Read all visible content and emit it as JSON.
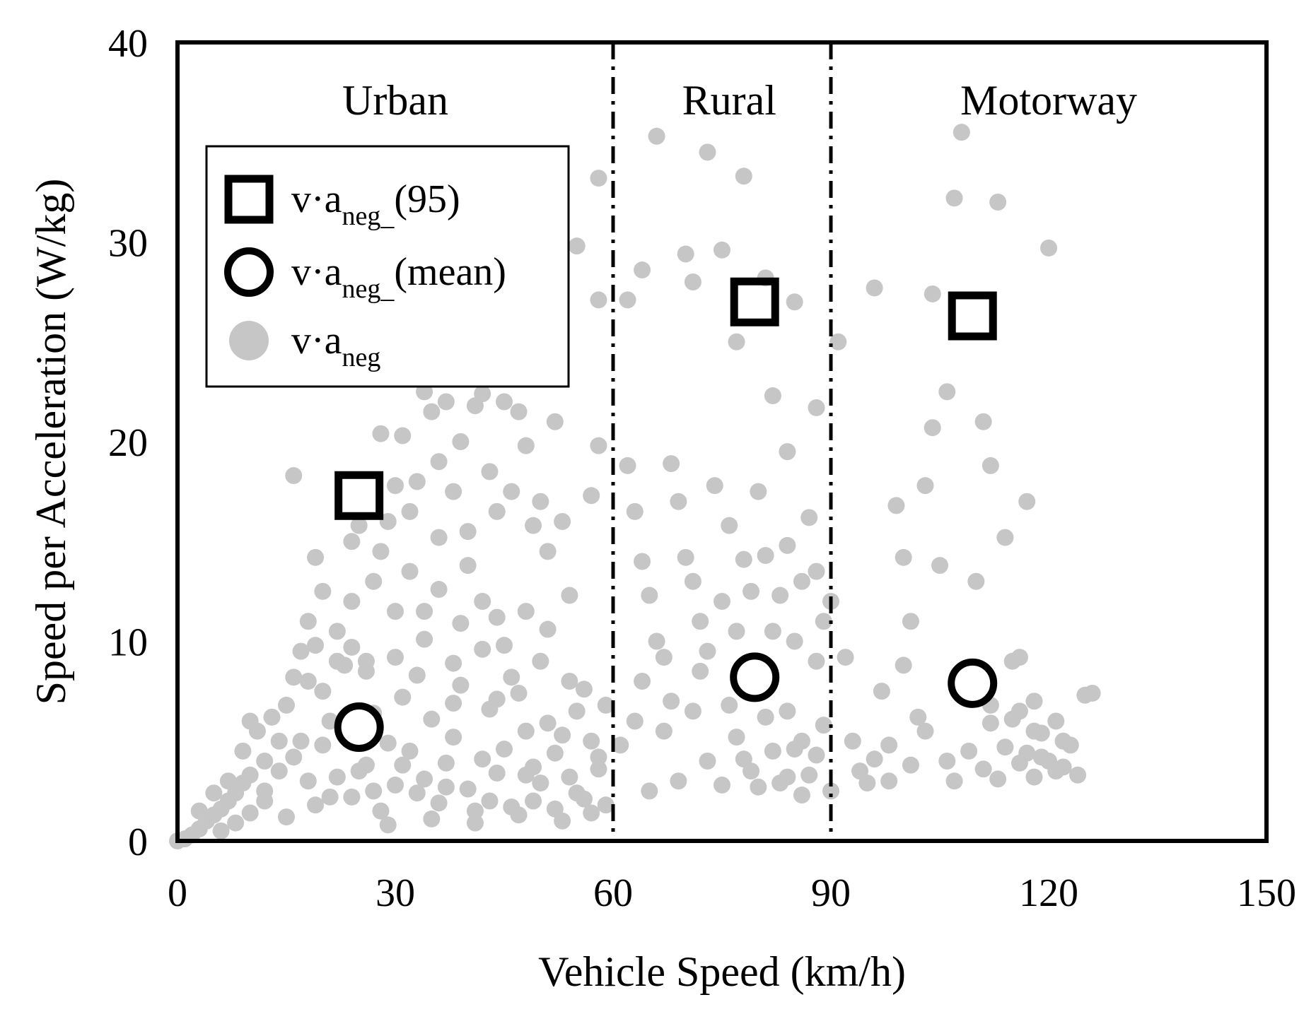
{
  "chart_data": {
    "type": "scatter",
    "title": "",
    "xlabel": "Vehicle Speed (km/h)",
    "ylabel": "Speed per Acceleration (W/kg)",
    "xlim": [
      0,
      150
    ],
    "ylim": [
      0,
      40
    ],
    "xticks": [
      "0",
      "30",
      "60",
      "90",
      "120",
      "150"
    ],
    "yticks": [
      "0",
      "10",
      "20",
      "30",
      "40"
    ],
    "grid": false,
    "legend_position": "top-left",
    "region_boundaries": [
      60,
      90
    ],
    "regions": [
      {
        "label": "Urban",
        "x_center": 30
      },
      {
        "label": "Rural",
        "x_center": 76
      },
      {
        "label": "Motorway",
        "x_center": 120
      }
    ],
    "legend": [
      {
        "symbol": "square",
        "base": "v·a",
        "sub": "neg_",
        "suffix": "(95)"
      },
      {
        "symbol": "circle",
        "base": "v·a",
        "sub": "neg_",
        "suffix": "(mean)"
      },
      {
        "symbol": "dot",
        "base": "v·a",
        "sub": "neg",
        "suffix": ""
      }
    ],
    "series": [
      {
        "name": "v·a_neg_(95)",
        "marker": "square",
        "points": [
          [
            25,
            17.3
          ],
          [
            79.5,
            27.0
          ],
          [
            109.5,
            26.3
          ]
        ]
      },
      {
        "name": "v·a_neg_(mean)",
        "marker": "circle",
        "points": [
          [
            25,
            5.7
          ],
          [
            79.5,
            8.2
          ],
          [
            109.5,
            7.9
          ]
        ]
      },
      {
        "name": "v·a_neg",
        "marker": "dot",
        "color": "#c6c6c6",
        "points": [
          [
            0,
            0
          ],
          [
            1,
            0.1
          ],
          [
            2,
            0.3
          ],
          [
            3,
            0.6
          ],
          [
            4,
            1.0
          ],
          [
            5,
            1.3
          ],
          [
            6,
            1.6
          ],
          [
            7,
            2.0
          ],
          [
            8,
            2.4
          ],
          [
            9,
            2.9
          ],
          [
            10,
            3.3
          ],
          [
            6,
            0.5
          ],
          [
            8,
            0.9
          ],
          [
            10,
            1.4
          ],
          [
            12,
            2.0
          ],
          [
            3,
            1.5
          ],
          [
            5,
            2.4
          ],
          [
            7,
            3.0
          ],
          [
            9,
            4.5
          ],
          [
            10,
            6.0
          ],
          [
            11,
            5.5
          ],
          [
            12,
            4.0
          ],
          [
            13,
            6.2
          ],
          [
            14,
            5.0
          ],
          [
            15,
            6.8
          ],
          [
            16,
            8.2
          ],
          [
            17,
            9.5
          ],
          [
            18,
            11.0
          ],
          [
            19,
            9.8
          ],
          [
            20,
            12.5
          ],
          [
            20,
            7.5
          ],
          [
            21,
            6.0
          ],
          [
            22,
            10.5
          ],
          [
            23,
            8.8
          ],
          [
            24,
            12.0
          ],
          [
            24,
            15.0
          ],
          [
            25,
            15.8
          ],
          [
            26,
            9.0
          ],
          [
            27,
            13.0
          ],
          [
            28,
            14.5
          ],
          [
            29,
            16.0
          ],
          [
            30,
            17.8
          ],
          [
            31,
            20.3
          ],
          [
            32,
            16.5
          ],
          [
            33,
            18.0
          ],
          [
            34,
            22.5
          ],
          [
            35,
            21.5
          ],
          [
            36,
            19.0
          ],
          [
            37,
            22.0
          ],
          [
            38,
            17.5
          ],
          [
            39,
            20.0
          ],
          [
            40,
            15.5
          ],
          [
            41,
            21.8
          ],
          [
            42,
            22.4
          ],
          [
            43,
            18.5
          ],
          [
            44,
            16.5
          ],
          [
            45,
            22.0
          ],
          [
            46,
            17.5
          ],
          [
            47,
            21.5
          ],
          [
            48,
            19.8
          ],
          [
            49,
            15.8
          ],
          [
            50,
            17.0
          ],
          [
            51,
            14.5
          ],
          [
            52,
            21.0
          ],
          [
            53,
            16.0
          ],
          [
            54,
            12.3
          ],
          [
            55,
            29.8
          ],
          [
            58,
            27.1
          ],
          [
            58,
            33.2
          ],
          [
            57,
            17.3
          ],
          [
            58,
            19.8
          ],
          [
            16,
            18.3
          ],
          [
            19,
            14.2
          ],
          [
            24,
            9.7
          ],
          [
            28,
            20.4
          ],
          [
            30,
            11.5
          ],
          [
            33,
            8.3
          ],
          [
            36,
            12.6
          ],
          [
            39,
            10.9
          ],
          [
            42,
            12.0
          ],
          [
            45,
            9.8
          ],
          [
            48,
            11.5
          ],
          [
            51,
            10.6
          ],
          [
            54,
            8.0
          ],
          [
            56,
            7.6
          ],
          [
            57,
            5.0
          ],
          [
            58,
            4.2
          ],
          [
            59,
            6.8
          ],
          [
            12,
            2.5
          ],
          [
            14,
            3.5
          ],
          [
            16,
            4.2
          ],
          [
            18,
            3.0
          ],
          [
            20,
            4.8
          ],
          [
            22,
            3.2
          ],
          [
            24,
            2.2
          ],
          [
            26,
            3.8
          ],
          [
            28,
            1.5
          ],
          [
            30,
            2.8
          ],
          [
            32,
            4.5
          ],
          [
            34,
            3.1
          ],
          [
            36,
            1.9
          ],
          [
            38,
            5.2
          ],
          [
            40,
            2.6
          ],
          [
            42,
            4.1
          ],
          [
            44,
            3.4
          ],
          [
            46,
            1.7
          ],
          [
            48,
            5.5
          ],
          [
            50,
            2.9
          ],
          [
            52,
            4.4
          ],
          [
            54,
            3.2
          ],
          [
            56,
            2.1
          ],
          [
            58,
            3.6
          ],
          [
            59,
            1.8
          ],
          [
            15,
            1.2
          ],
          [
            19,
            1.8
          ],
          [
            23,
            5.6
          ],
          [
            27,
            6.4
          ],
          [
            31,
            7.2
          ],
          [
            35,
            6.1
          ],
          [
            39,
            7.8
          ],
          [
            43,
            6.6
          ],
          [
            47,
            7.4
          ],
          [
            51,
            5.9
          ],
          [
            55,
            6.5
          ],
          [
            17,
            5.0
          ],
          [
            21,
            2.2
          ],
          [
            25,
            3.5
          ],
          [
            29,
            4.9
          ],
          [
            33,
            2.4
          ],
          [
            37,
            3.9
          ],
          [
            41,
            1.5
          ],
          [
            45,
            4.6
          ],
          [
            49,
            2.0
          ],
          [
            53,
            5.3
          ],
          [
            26,
            8.5
          ],
          [
            30,
            9.2
          ],
          [
            34,
            10.1
          ],
          [
            38,
            8.9
          ],
          [
            42,
            9.6
          ],
          [
            46,
            8.2
          ],
          [
            50,
            9.0
          ],
          [
            29,
            0.8
          ],
          [
            35,
            1.1
          ],
          [
            41,
            0.9
          ],
          [
            47,
            1.3
          ],
          [
            53,
            1.0
          ],
          [
            18,
            8.0
          ],
          [
            22,
            9.0
          ],
          [
            32,
            13.5
          ],
          [
            36,
            15.2
          ],
          [
            40,
            13.8
          ],
          [
            44,
            11.2
          ],
          [
            34,
            11.5
          ],
          [
            38,
            6.9
          ],
          [
            44,
            7.1
          ],
          [
            48,
            3.3
          ],
          [
            52,
            1.6
          ],
          [
            27,
            2.5
          ],
          [
            31,
            3.8
          ],
          [
            37,
            2.7
          ],
          [
            43,
            2.0
          ],
          [
            49,
            3.7
          ],
          [
            55,
            2.4
          ],
          [
            57,
            1.4
          ],
          [
            62,
            18.8
          ],
          [
            63,
            16.5
          ],
          [
            64,
            14.0
          ],
          [
            65,
            12.3
          ],
          [
            66,
            10.0
          ],
          [
            67,
            9.2
          ],
          [
            68,
            18.9
          ],
          [
            69,
            17.0
          ],
          [
            70,
            14.2
          ],
          [
            71,
            13.0
          ],
          [
            72,
            11.0
          ],
          [
            73,
            9.5
          ],
          [
            74,
            17.8
          ],
          [
            75,
            12.0
          ],
          [
            76,
            15.8
          ],
          [
            77,
            10.5
          ],
          [
            78,
            14.1
          ],
          [
            79,
            12.5
          ],
          [
            80,
            17.5
          ],
          [
            81,
            14.3
          ],
          [
            82,
            10.5
          ],
          [
            83,
            12.3
          ],
          [
            84,
            14.8
          ],
          [
            85,
            10.0
          ],
          [
            86,
            13.0
          ],
          [
            87,
            16.2
          ],
          [
            88,
            13.5
          ],
          [
            89,
            11.0
          ],
          [
            90,
            12.0
          ],
          [
            66,
            35.3
          ],
          [
            73,
            34.5
          ],
          [
            78,
            33.3
          ],
          [
            70,
            29.4
          ],
          [
            75,
            29.6
          ],
          [
            64,
            28.6
          ],
          [
            71,
            28.0
          ],
          [
            62,
            27.1
          ],
          [
            81,
            28.2
          ],
          [
            82,
            22.3
          ],
          [
            84,
            19.5
          ],
          [
            88,
            21.7
          ],
          [
            91,
            25.0
          ],
          [
            85,
            27.0
          ],
          [
            77,
            25.0
          ],
          [
            61,
            4.8
          ],
          [
            63,
            6.0
          ],
          [
            65,
            2.5
          ],
          [
            67,
            5.5
          ],
          [
            69,
            3.0
          ],
          [
            71,
            6.5
          ],
          [
            73,
            4.0
          ],
          [
            75,
            2.8
          ],
          [
            77,
            5.2
          ],
          [
            79,
            3.5
          ],
          [
            81,
            6.2
          ],
          [
            83,
            2.9
          ],
          [
            85,
            4.6
          ],
          [
            87,
            3.3
          ],
          [
            89,
            5.8
          ],
          [
            90,
            2.5
          ],
          [
            64,
            8.0
          ],
          [
            68,
            7.0
          ],
          [
            72,
            8.5
          ],
          [
            76,
            6.8
          ],
          [
            80,
            7.5
          ],
          [
            84,
            6.5
          ],
          [
            88,
            9.0
          ],
          [
            82,
            4.5
          ],
          [
            84,
            3.2
          ],
          [
            86,
            5.0
          ],
          [
            80,
            2.7
          ],
          [
            78,
            4.1
          ],
          [
            86,
            2.3
          ],
          [
            88,
            4.3
          ],
          [
            92,
            9.2
          ],
          [
            93,
            5.0
          ],
          [
            94,
            3.5
          ],
          [
            95,
            2.9
          ],
          [
            96,
            27.7
          ],
          [
            97,
            7.5
          ],
          [
            98,
            4.8
          ],
          [
            99,
            16.8
          ],
          [
            100,
            14.2
          ],
          [
            101,
            11.0
          ],
          [
            102,
            6.2
          ],
          [
            103,
            17.8
          ],
          [
            104,
            20.7
          ],
          [
            104,
            27.4
          ],
          [
            105,
            13.8
          ],
          [
            106,
            22.5
          ],
          [
            107,
            32.2
          ],
          [
            108,
            35.5
          ],
          [
            110,
            13.0
          ],
          [
            111,
            21.0
          ],
          [
            112,
            18.8
          ],
          [
            113,
            32.0
          ],
          [
            114,
            15.2
          ],
          [
            115,
            9.0
          ],
          [
            116,
            6.5
          ],
          [
            117,
            17.0
          ],
          [
            118,
            5.5
          ],
          [
            119,
            4.2
          ],
          [
            120,
            29.7
          ],
          [
            121,
            3.5
          ],
          [
            122,
            5.0
          ],
          [
            123,
            4.8
          ],
          [
            124,
            3.3
          ],
          [
            125,
            7.3
          ],
          [
            126,
            7.4
          ],
          [
            100,
            8.8
          ],
          [
            101,
            3.8
          ],
          [
            103,
            5.5
          ],
          [
            107,
            3.0
          ],
          [
            109,
            4.5
          ],
          [
            111,
            3.6
          ],
          [
            112,
            5.9
          ],
          [
            113,
            3.1
          ],
          [
            114,
            4.7
          ],
          [
            115,
            6.1
          ],
          [
            116,
            3.9
          ],
          [
            117,
            4.4
          ],
          [
            118,
            3.2
          ],
          [
            119,
            5.4
          ],
          [
            120,
            4.0
          ],
          [
            121,
            6.0
          ],
          [
            122,
            3.7
          ],
          [
            110,
            7.2
          ],
          [
            112,
            6.8
          ],
          [
            116,
            9.2
          ],
          [
            118,
            7.0
          ],
          [
            96,
            4.1
          ],
          [
            98,
            3.0
          ],
          [
            106,
            4.0
          ]
        ]
      }
    ]
  }
}
